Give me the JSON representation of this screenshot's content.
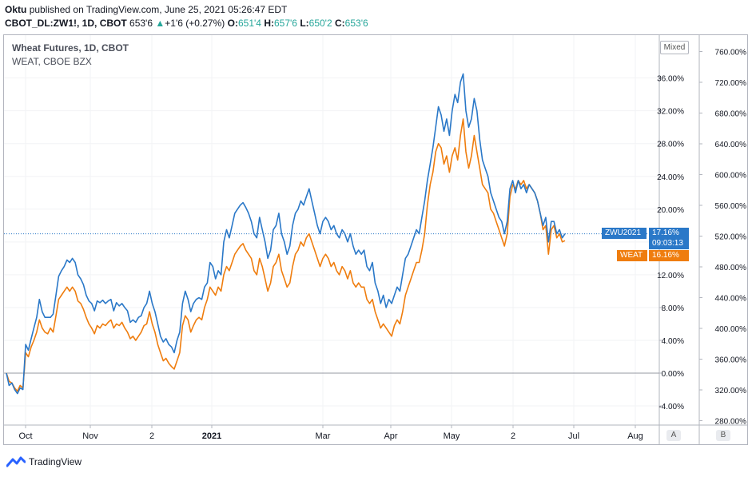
{
  "header": {
    "author": "Oktu",
    "published_text": "published on TradingView.com, June 25, 2021 05:26:47 EDT",
    "symbol": "CBOT_DL:ZW1!, 1D",
    "exchange": "CBOT",
    "last": "653'6",
    "change": "+1'6 (+0.27%)",
    "open_label": "O:",
    "open": "651'4",
    "high_label": "H:",
    "high": "657'6",
    "low_label": "L:",
    "low": "650'2",
    "close_label": "C:",
    "close": "653'6"
  },
  "legend": {
    "title": "Wheat Futures, 1D, CBOT",
    "compare": "WEAT, CBOE BZX",
    "scale_mode": "Mixed"
  },
  "tags": {
    "zwu_label": "ZWU2021",
    "zwu_value": "17.16%",
    "countdown": "09:03:13",
    "weat_label": "WEAT",
    "weat_value": "16.16%"
  },
  "buttons": {
    "a": "A",
    "b": "B"
  },
  "footer": {
    "brand": "TradingView"
  },
  "colors": {
    "zwu": "#2a78c8",
    "weat": "#ef7d0e",
    "grid": "#e8e8ec",
    "zero": "#9598a1"
  },
  "chart_data": {
    "type": "line",
    "x_ticks": [
      "Oct",
      "Nov",
      "2",
      "2021",
      "Mar",
      "Apr",
      "May",
      "2",
      "Jul",
      "Aug"
    ],
    "y_left_ticks": [
      "-4.00%",
      "0.00%",
      "4.00%",
      "8.00%",
      "12.00%",
      "16.00%",
      "20.00%",
      "24.00%",
      "28.00%",
      "32.00%",
      "36.00%"
    ],
    "y_right_ticks": [
      "280.00%",
      "320.00%",
      "360.00%",
      "400.00%",
      "440.00%",
      "480.00%",
      "520.00%",
      "560.00%",
      "600.00%",
      "640.00%",
      "680.00%",
      "720.00%",
      "760.00%"
    ],
    "y_range_percent": [
      -6,
      41
    ],
    "series": [
      {
        "name": "ZWU2021",
        "values": [
          0.0,
          -1.5,
          -1.2,
          -2.0,
          -2.5,
          -1.8,
          -2.0,
          3.5,
          2.8,
          4.2,
          5.5,
          6.8,
          9.0,
          7.5,
          6.8,
          6.8,
          6.8,
          7.2,
          9.5,
          11.8,
          12.5,
          13.0,
          13.8,
          13.5,
          14.0,
          13.5,
          12.0,
          11.5,
          10.8,
          9.5,
          8.8,
          8.5,
          7.6,
          8.8,
          8.6,
          8.9,
          8.5,
          8.8,
          9.0,
          7.6,
          8.6,
          8.2,
          8.5,
          8.0,
          7.6,
          6.2,
          6.5,
          6.2,
          6.8,
          7.0,
          8.0,
          8.5,
          10.0,
          8.5,
          7.5,
          6.0,
          4.5,
          3.8,
          4.2,
          3.5,
          3.2,
          2.5,
          4.0,
          5.0,
          8.5,
          10.0,
          9.0,
          7.5,
          8.5,
          9.0,
          9.2,
          9.0,
          10.5,
          11.0,
          13.5,
          13.0,
          11.5,
          12.5,
          12.0,
          16.0,
          17.5,
          16.5,
          18.0,
          19.5,
          20.0,
          20.5,
          20.8,
          20.2,
          19.5,
          18.5,
          17.0,
          16.5,
          19.0,
          17.5,
          16.0,
          14.0,
          15.0,
          17.5,
          18.0,
          19.5,
          17.0,
          16.0,
          14.5,
          15.5,
          18.0,
          19.5,
          20.0,
          21.0,
          20.5,
          21.5,
          22.5,
          21.0,
          19.5,
          18.0,
          17.0,
          18.5,
          19.0,
          18.5,
          17.5,
          18.0,
          17.0,
          16.5,
          17.5,
          17.0,
          16.0,
          17.0,
          15.5,
          14.5,
          15.0,
          14.5,
          15.0,
          13.0,
          12.5,
          13.5,
          11.0,
          10.0,
          8.5,
          9.5,
          8.0,
          9.0,
          8.5,
          9.5,
          10.5,
          10.0,
          12.0,
          14.0,
          14.5,
          15.5,
          16.5,
          17.5,
          17.0,
          19.0,
          21.0,
          23.5,
          25.5,
          27.5,
          30.0,
          32.5,
          31.5,
          29.5,
          31.0,
          29.0,
          32.0,
          34.0,
          33.0,
          35.5,
          36.5,
          32.0,
          30.0,
          31.0,
          33.5,
          32.0,
          28.5,
          26.0,
          25.0,
          24.0,
          22.0,
          21.0,
          20.0,
          19.0,
          18.5,
          17.0,
          18.5,
          22.5,
          23.5,
          22.0,
          23.5,
          22.5,
          23.0,
          22.0,
          23.0,
          22.5,
          22.0,
          21.0,
          19.5,
          18.0,
          19.0,
          16.0,
          18.5,
          18.5,
          17.0,
          17.5,
          16.5,
          17.0
        ],
        "color": "#2a78c8"
      },
      {
        "name": "WEAT",
        "values": [
          0.0,
          -1.0,
          -1.2,
          -1.8,
          -2.2,
          -1.5,
          -1.8,
          2.5,
          2.0,
          3.2,
          4.0,
          5.0,
          6.5,
          5.5,
          5.0,
          4.8,
          5.5,
          5.0,
          7.0,
          9.0,
          9.5,
          10.0,
          10.5,
          10.0,
          10.5,
          10.0,
          8.8,
          8.5,
          7.8,
          6.8,
          6.0,
          5.5,
          4.8,
          5.8,
          5.5,
          6.0,
          5.8,
          6.2,
          6.5,
          5.5,
          6.0,
          5.8,
          6.2,
          5.5,
          5.0,
          4.2,
          4.5,
          4.0,
          4.5,
          5.0,
          5.8,
          6.0,
          7.5,
          6.0,
          5.0,
          3.5,
          2.5,
          1.5,
          1.8,
          1.2,
          0.8,
          0.5,
          1.5,
          2.5,
          5.8,
          7.0,
          6.5,
          5.0,
          5.8,
          6.5,
          6.8,
          6.5,
          8.0,
          9.0,
          10.5,
          10.0,
          9.5,
          10.5,
          10.0,
          12.0,
          13.0,
          12.5,
          13.5,
          14.5,
          15.0,
          15.5,
          15.8,
          15.0,
          14.5,
          14.0,
          12.5,
          12.0,
          14.0,
          13.0,
          11.5,
          10.0,
          11.0,
          13.0,
          13.5,
          14.5,
          12.5,
          11.5,
          10.5,
          11.0,
          13.0,
          14.5,
          15.0,
          16.0,
          15.5,
          16.5,
          17.0,
          16.0,
          15.0,
          14.0,
          13.0,
          14.0,
          14.5,
          14.0,
          13.0,
          13.5,
          12.5,
          12.0,
          13.0,
          12.5,
          11.5,
          12.5,
          11.0,
          10.5,
          11.0,
          10.5,
          10.5,
          9.0,
          8.5,
          9.0,
          7.5,
          6.5,
          5.5,
          6.0,
          5.5,
          5.0,
          4.5,
          5.8,
          6.5,
          6.0,
          7.5,
          9.5,
          10.5,
          11.5,
          12.5,
          13.5,
          13.5,
          15.0,
          17.0,
          20.5,
          23.0,
          24.5,
          27.0,
          28.0,
          27.5,
          25.5,
          26.5,
          24.5,
          26.5,
          27.5,
          26.0,
          29.0,
          31.0,
          27.0,
          25.0,
          26.5,
          29.0,
          27.0,
          25.0,
          23.0,
          22.5,
          22.0,
          20.0,
          19.5,
          18.5,
          17.5,
          16.5,
          15.5,
          17.0,
          21.5,
          23.0,
          22.5,
          23.5,
          23.0,
          23.5,
          22.5,
          23.0,
          22.5,
          22.0,
          21.0,
          19.5,
          17.5,
          18.0,
          14.5,
          17.5,
          18.0,
          16.5,
          17.0,
          16.0,
          16.16
        ],
        "color": "#ef7d0e"
      }
    ]
  }
}
